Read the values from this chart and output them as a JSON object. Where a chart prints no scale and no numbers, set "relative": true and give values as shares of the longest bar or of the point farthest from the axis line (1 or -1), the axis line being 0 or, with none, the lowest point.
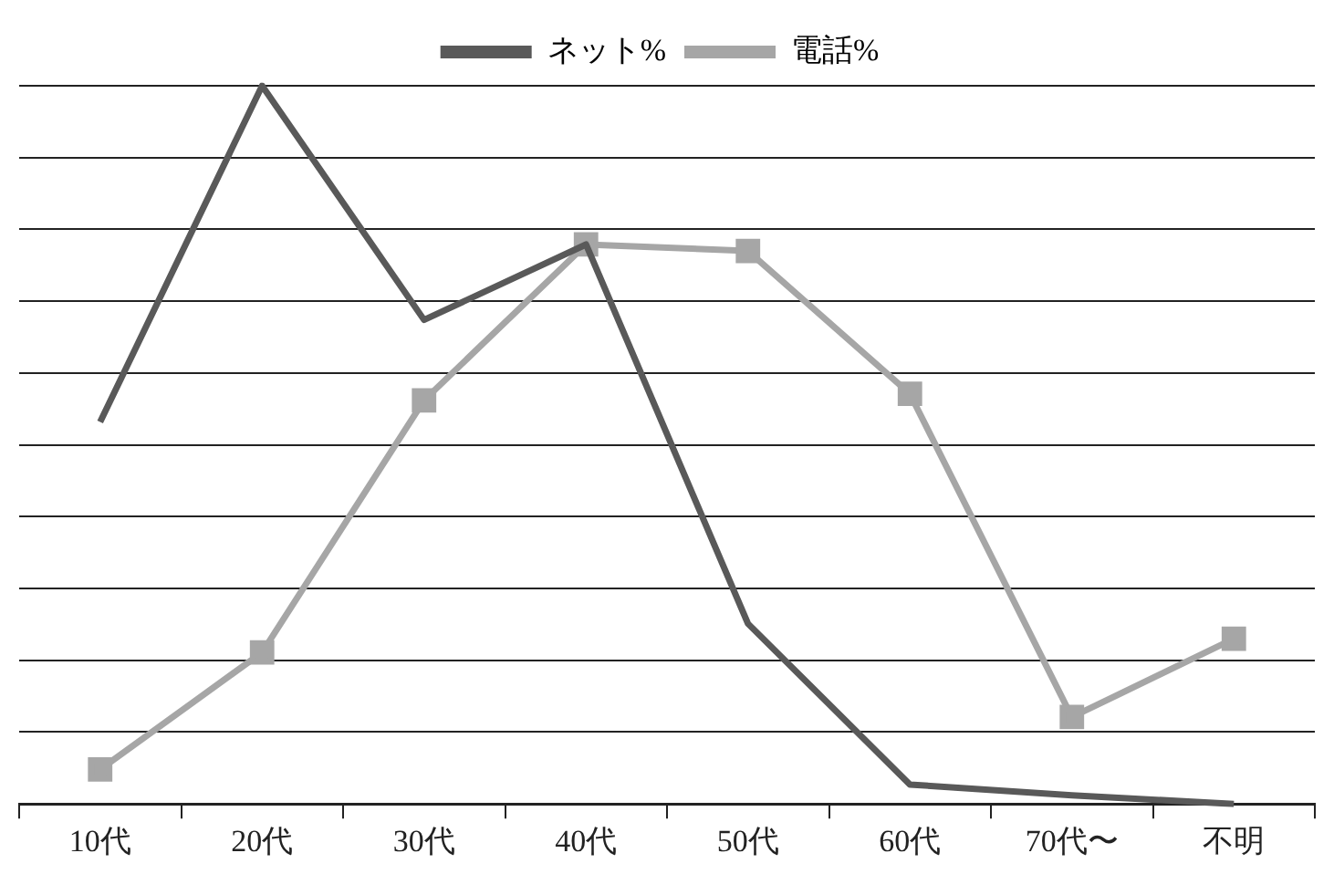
{
  "chart_data": {
    "type": "line",
    "relative": true,
    "categories": [
      "10代",
      "20代",
      "30代",
      "40代",
      "50代",
      "60代",
      "70代〜",
      "不明"
    ],
    "series": [
      {
        "name": "ネット%",
        "color": "#595959",
        "marker": "none",
        "values": [
          0.532,
          1,
          0.674,
          0.779,
          0.251,
          0.027,
          0.012,
          0
        ]
      },
      {
        "name": "電話%",
        "color": "#a6a6a6",
        "marker": "square",
        "values": [
          0.048,
          0.211,
          0.562,
          0.779,
          0.77,
          0.571,
          0.121,
          0.23
        ]
      }
    ],
    "grid": "y",
    "legend": "top"
  }
}
